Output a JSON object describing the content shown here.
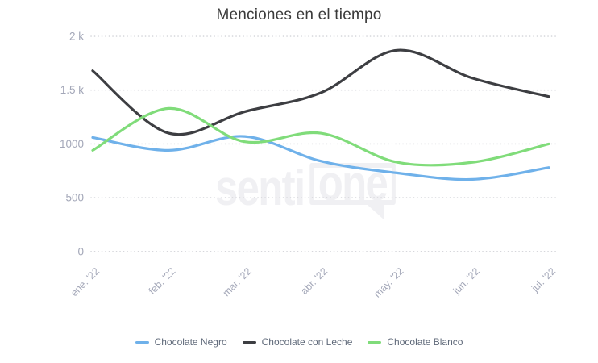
{
  "title": "Menciones en el tiempo",
  "watermark": {
    "senti": "senti",
    "one": "one"
  },
  "colors": {
    "background": "#ffffff",
    "title_text": "#3a3a3a",
    "axis_label": "#a3a7b8",
    "gridline": "#d2d3d8",
    "legend_text": "#606a7a",
    "watermark": "#f0f0f3",
    "series_negro": "#6fb1ea",
    "series_leche": "#3d3e42",
    "series_blanco": "#80dc7a"
  },
  "chart_data": {
    "type": "line",
    "title": "Menciones en el tiempo",
    "xlabel": "",
    "ylabel": "",
    "categories": [
      "ene. '22",
      "feb. '22",
      "mar. '22",
      "abr. '22",
      "may. '22",
      "jun. '22",
      "jul. '22"
    ],
    "series": [
      {
        "name": "Chocolate Negro",
        "color": "#6fb1ea",
        "values": [
          1060,
          940,
          1070,
          840,
          730,
          670,
          780
        ]
      },
      {
        "name": "Chocolate con Leche",
        "color": "#3d3e42",
        "values": [
          1680,
          1100,
          1300,
          1475,
          1870,
          1610,
          1440
        ]
      },
      {
        "name": "Chocolate Blanco",
        "color": "#80dc7a",
        "values": [
          940,
          1330,
          1020,
          1100,
          830,
          830,
          1000
        ]
      }
    ],
    "ylim": [
      0,
      2000
    ],
    "yticks": [
      {
        "value": 2000,
        "label": "2 k"
      },
      {
        "value": 1500,
        "label": "1.5 k"
      },
      {
        "value": 1000,
        "label": "1000"
      },
      {
        "value": 500,
        "label": "500"
      },
      {
        "value": 0,
        "label": "0"
      }
    ],
    "grid": "horizontal dotted",
    "line_style": "spline smoothed",
    "legend_position": "bottom",
    "x_label_rotation": -45
  }
}
